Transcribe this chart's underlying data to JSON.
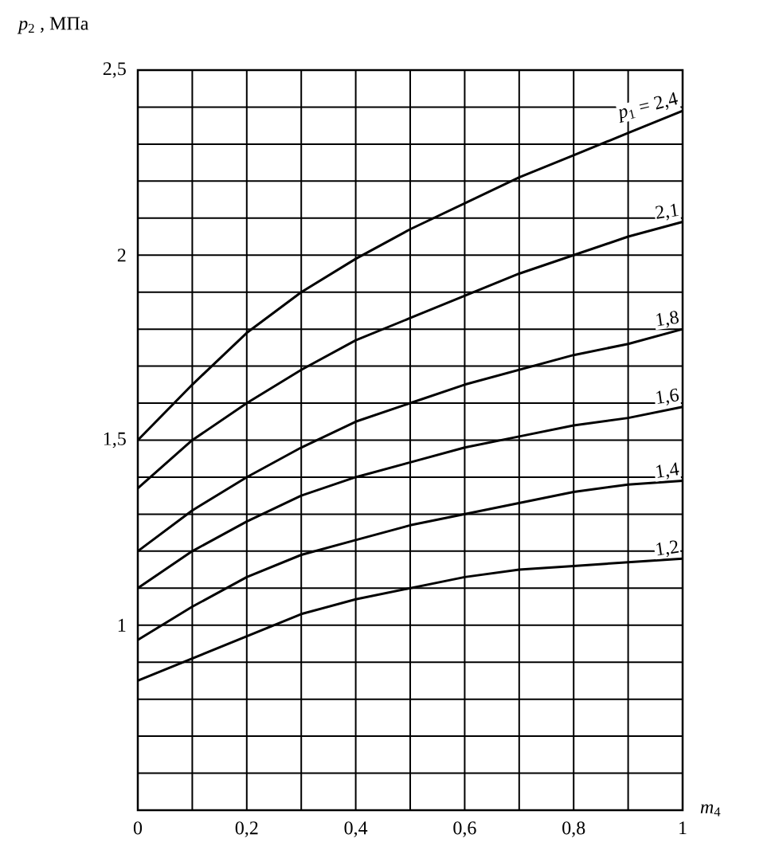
{
  "chart_data": {
    "type": "line",
    "xlabel": "*m*$_{4}$",
    "ylabel": "*p*$_{2}$ , МПа",
    "x": [
      0,
      0.1,
      0.2,
      0.3,
      0.4,
      0.5,
      0.6,
      0.7,
      0.8,
      0.9,
      1
    ],
    "series": [
      {
        "name": "*p*$_{1}$ = 2,4",
        "color": "#000000",
        "values": [
          1.5,
          1.65,
          1.79,
          1.9,
          1.99,
          2.07,
          2.14,
          2.21,
          2.27,
          2.33,
          2.39
        ]
      },
      {
        "name": "2,1",
        "color": "#000000",
        "values": [
          1.37,
          1.5,
          1.6,
          1.69,
          1.77,
          1.83,
          1.89,
          1.95,
          2.0,
          2.05,
          2.09
        ]
      },
      {
        "name": "1,8",
        "color": "#000000",
        "values": [
          1.2,
          1.31,
          1.4,
          1.48,
          1.55,
          1.6,
          1.65,
          1.69,
          1.73,
          1.76,
          1.8
        ]
      },
      {
        "name": "1,6",
        "color": "#000000",
        "values": [
          1.1,
          1.2,
          1.28,
          1.35,
          1.4,
          1.44,
          1.48,
          1.51,
          1.54,
          1.56,
          1.59
        ]
      },
      {
        "name": "1,4",
        "color": "#000000",
        "values": [
          0.96,
          1.05,
          1.13,
          1.19,
          1.23,
          1.27,
          1.3,
          1.33,
          1.36,
          1.38,
          1.39
        ]
      },
      {
        "name": "1,2",
        "color": "#000000",
        "values": [
          0.85,
          0.91,
          0.97,
          1.03,
          1.07,
          1.1,
          1.13,
          1.15,
          1.16,
          1.17,
          1.18
        ]
      }
    ],
    "xlim": [
      0,
      1
    ],
    "ylim": [
      0.5,
      2.5
    ],
    "xticks": [
      0,
      {
        "value": 0.1,
        "label": null
      },
      {
        "value": 0.2,
        "label": "0,2"
      },
      {
        "value": 0.3,
        "label": null
      },
      {
        "value": 0.4,
        "label": "0,4"
      },
      {
        "value": 0.5,
        "label": null
      },
      {
        "value": 0.6,
        "label": "0,6"
      },
      {
        "value": 0.7,
        "label": null
      },
      {
        "value": 0.8,
        "label": "0,8"
      },
      {
        "value": 0.9,
        "label": null
      },
      1
    ],
    "yticks": [
      {
        "value": 0.5,
        "label": null
      },
      {
        "value": 0.6,
        "label": null
      },
      {
        "value": 0.7,
        "label": null
      },
      {
        "value": 0.8,
        "label": null
      },
      {
        "value": 0.9,
        "label": null
      },
      1,
      {
        "value": 1.1,
        "label": null
      },
      {
        "value": 1.2,
        "label": null
      },
      {
        "value": 1.3,
        "label": null
      },
      {
        "value": 1.4,
        "label": null
      },
      {
        "value": 1.5,
        "label": "1,5"
      },
      {
        "value": 1.6,
        "label": null
      },
      {
        "value": 1.7,
        "label": null
      },
      {
        "value": 1.8,
        "label": null
      },
      {
        "value": 1.9,
        "label": null
      },
      2,
      {
        "value": 2.1,
        "label": null
      },
      {
        "value": 2.2,
        "label": null
      },
      {
        "value": 2.3,
        "label": null
      },
      {
        "value": 2.4,
        "label": null
      },
      {
        "value": 2.5,
        "label": "2,5"
      }
    ],
    "grid": true
  }
}
